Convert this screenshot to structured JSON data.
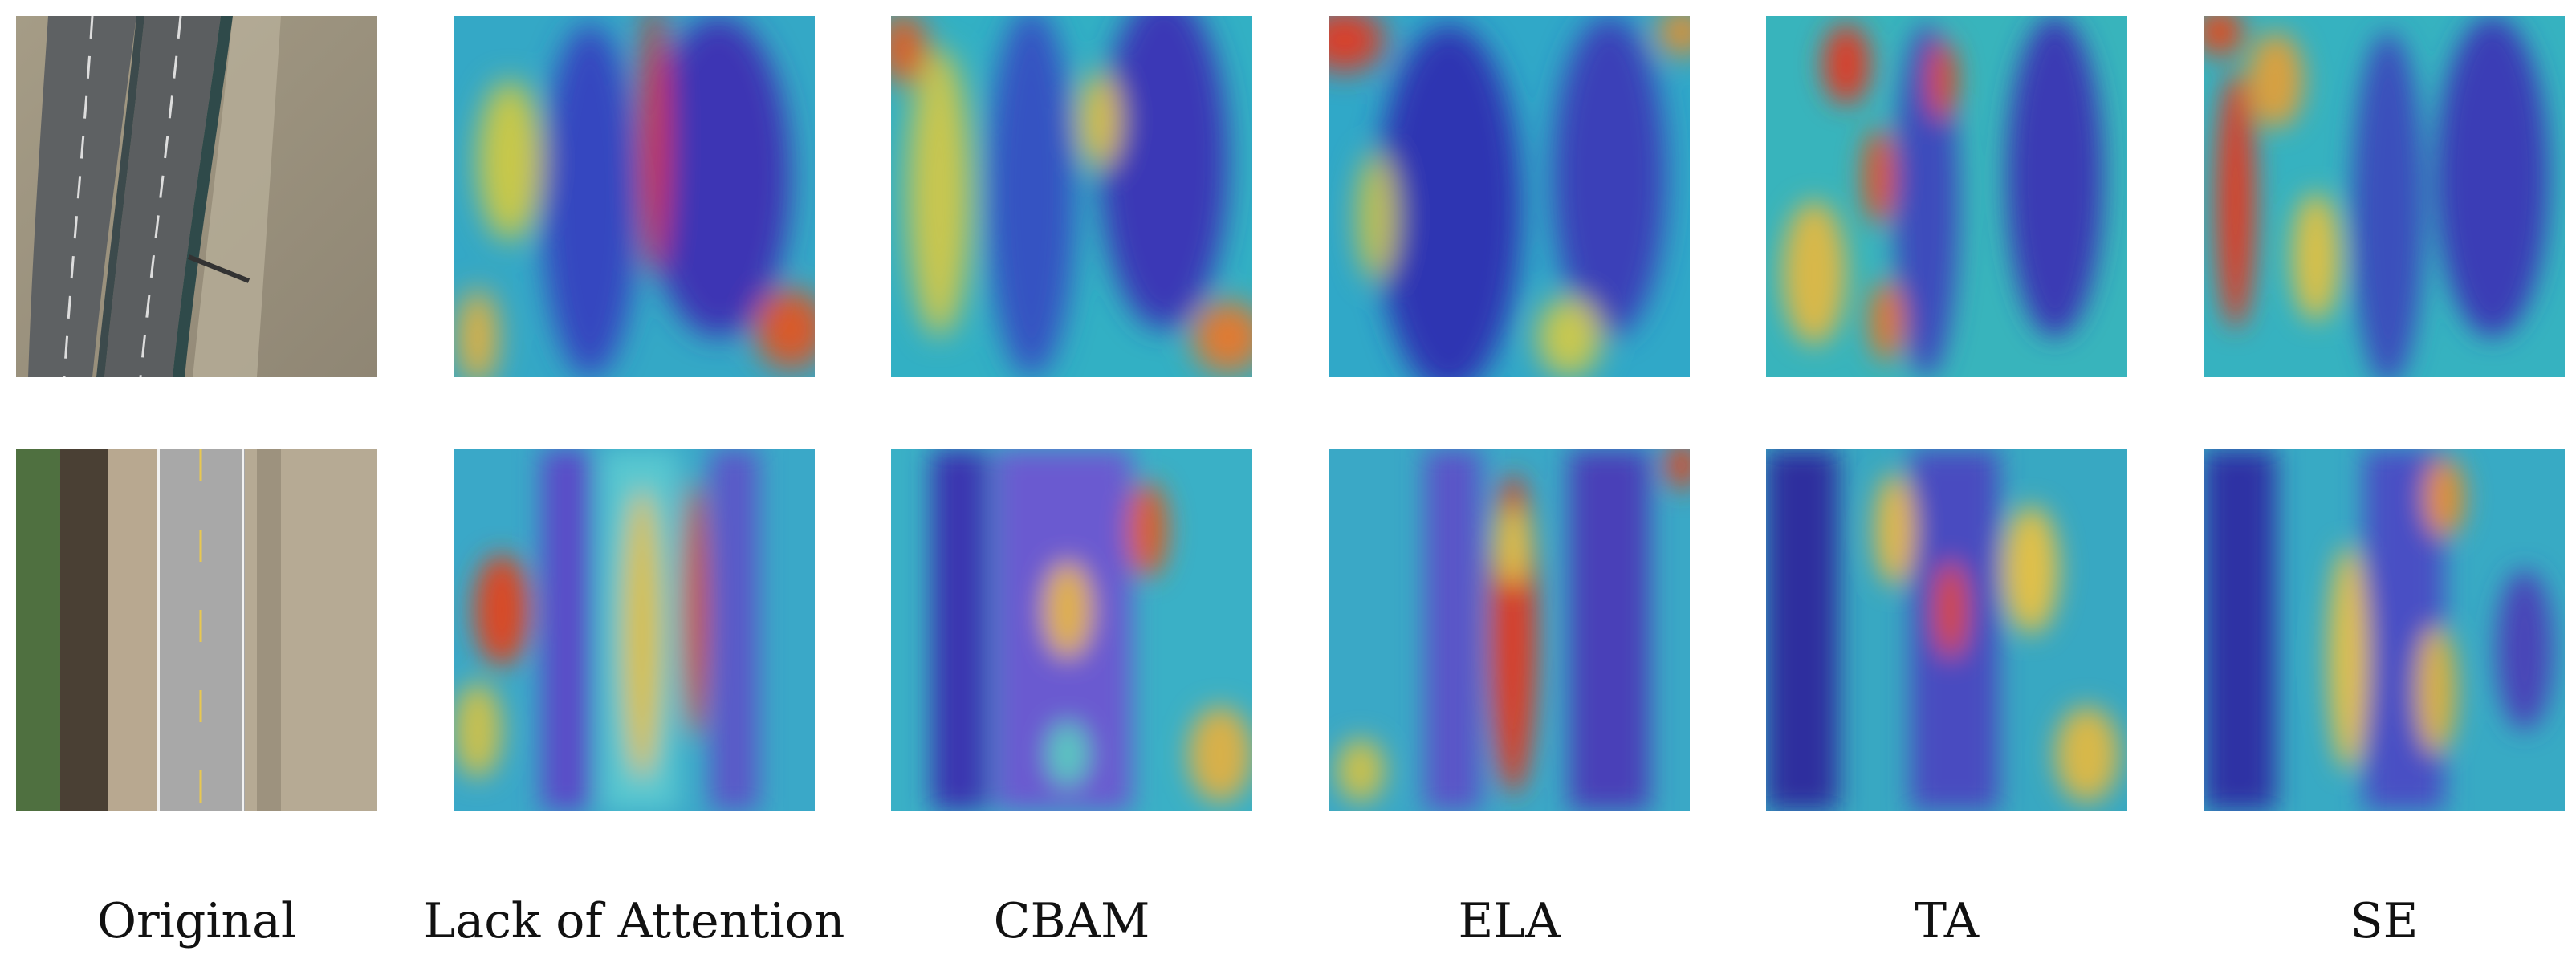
{
  "figure": {
    "columns": [
      {
        "key": "original",
        "label": "Original"
      },
      {
        "key": "lack",
        "label": "Lack of Attention"
      },
      {
        "key": "cbam",
        "label": "CBAM"
      },
      {
        "key": "ela",
        "label": "ELA"
      },
      {
        "key": "ta",
        "label": "TA"
      },
      {
        "key": "se",
        "label": "SE"
      }
    ],
    "rows": [
      {
        "key": "curved-road"
      },
      {
        "key": "straight-road"
      }
    ],
    "colors": {
      "asphalt": "#5f6264",
      "soil": "#9d9480",
      "heat_low": "#2f2cb8",
      "heat_mid": "#2fc8c8",
      "heat_high": "#e8d24a",
      "heat_peak": "#d83a1e"
    }
  }
}
